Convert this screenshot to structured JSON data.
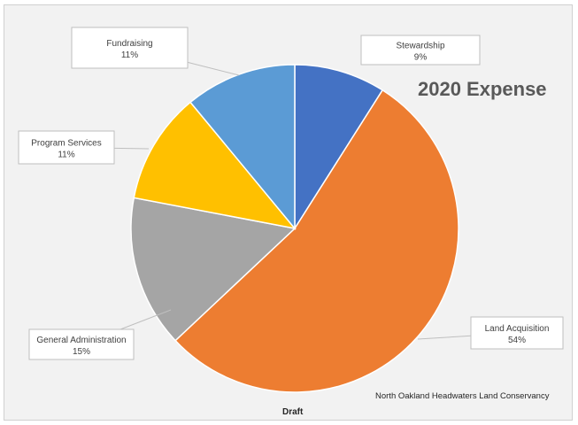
{
  "chart_data": {
    "type": "pie",
    "title": "2020 Expense",
    "slices": [
      {
        "label": "Stewardship",
        "pct_label": "9%",
        "value": 9,
        "color": "#4472C4"
      },
      {
        "label": "Land Acquisition",
        "pct_label": "54%",
        "value": 54,
        "color": "#ED7D31"
      },
      {
        "label": "General Administration",
        "pct_label": "15%",
        "value": 15,
        "color": "#A5A5A5"
      },
      {
        "label": "Program Services",
        "pct_label": "11%",
        "value": 11,
        "color": "#FFC000"
      },
      {
        "label": "Fundraising",
        "pct_label": "11%",
        "value": 11,
        "color": "#5B9BD5"
      }
    ],
    "start_angle_deg": 0,
    "direction": "clockwise",
    "legend": "none",
    "data_labels": "callouts"
  },
  "footer": {
    "draft_label": "Draft",
    "organization": "North Oakland Headwaters Land Conservancy"
  }
}
